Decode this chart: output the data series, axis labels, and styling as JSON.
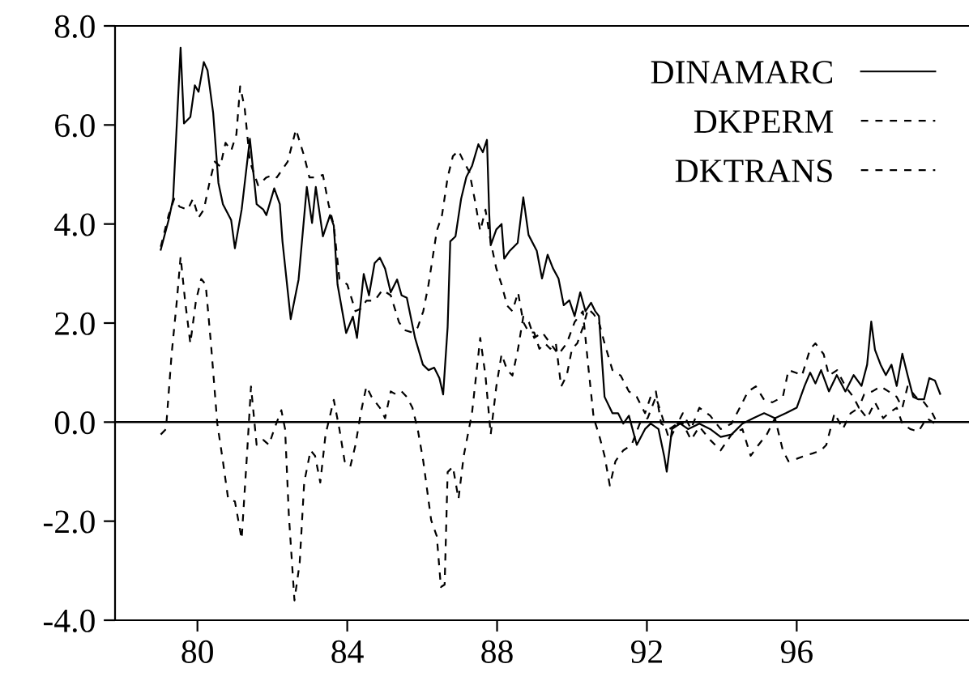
{
  "chart_data": {
    "type": "line",
    "xlim": [
      77.8,
      100.6
    ],
    "ylim": [
      -4.0,
      8.0
    ],
    "xticks": [
      80,
      84,
      88,
      92,
      96
    ],
    "yticks": [
      {
        "value": -4,
        "label": "-4.0"
      },
      {
        "value": -2,
        "label": "-2.0"
      },
      {
        "value": 0,
        "label": "0.0"
      },
      {
        "value": 2,
        "label": "2.0"
      },
      {
        "value": 4,
        "label": "4.0"
      },
      {
        "value": 6,
        "label": "6.0"
      },
      {
        "value": 8,
        "label": "8.0"
      }
    ],
    "grid": false,
    "legend": "top right",
    "marker": "none",
    "ref_lines": [
      {
        "axis": "y",
        "value": 0,
        "color": "#000000",
        "line_style": "solid"
      }
    ],
    "series": [
      {
        "name": "DINAMARC",
        "color": "#000000",
        "line_style": "solid",
        "x": [
          79.02,
          79.23,
          79.35,
          79.55,
          79.64,
          79.81,
          79.93,
          80.03,
          80.17,
          80.27,
          80.42,
          80.56,
          80.68,
          80.9,
          81.0,
          81.18,
          81.4,
          81.58,
          81.76,
          81.84,
          82.05,
          82.2,
          82.27,
          82.49,
          82.7,
          82.92,
          83.06,
          83.16,
          83.35,
          83.54,
          83.64,
          83.74,
          83.97,
          84.15,
          84.26,
          84.44,
          84.58,
          84.73,
          84.87,
          85.01,
          85.16,
          85.33,
          85.45,
          85.59,
          85.81,
          86.02,
          86.17,
          86.32,
          86.46,
          86.56,
          86.68,
          86.75,
          86.89,
          87.04,
          87.18,
          87.33,
          87.5,
          87.62,
          87.73,
          87.79,
          87.83,
          87.98,
          88.12,
          88.19,
          88.34,
          88.55,
          88.7,
          88.84,
          89.06,
          89.2,
          89.35,
          89.49,
          89.64,
          89.78,
          89.93,
          90.07,
          90.22,
          90.36,
          90.51,
          90.62,
          90.72,
          90.87,
          91.08,
          91.23,
          91.37,
          91.52,
          91.73,
          91.95,
          92.1,
          92.31,
          92.46,
          92.53,
          92.67,
          92.89,
          93.1,
          93.4,
          93.69,
          93.97,
          94.26,
          94.55,
          94.84,
          95.13,
          95.42,
          95.71,
          96.0,
          96.21,
          96.36,
          96.5,
          96.65,
          96.86,
          97.07,
          97.3,
          97.52,
          97.73,
          97.88,
          97.99,
          98.09,
          98.24,
          98.38,
          98.53,
          98.67,
          98.82,
          98.96,
          99.11,
          99.25,
          99.4,
          99.54,
          99.69,
          99.83
        ],
        "values": [
          3.48,
          4.08,
          4.51,
          7.56,
          6.03,
          6.16,
          6.8,
          6.67,
          7.27,
          7.1,
          6.24,
          4.83,
          4.4,
          4.08,
          3.51,
          4.29,
          5.72,
          4.4,
          4.29,
          4.18,
          4.72,
          4.4,
          3.65,
          2.08,
          2.88,
          4.75,
          4.02,
          4.75,
          3.75,
          4.18,
          3.97,
          2.78,
          1.8,
          2.13,
          1.7,
          2.99,
          2.56,
          3.21,
          3.32,
          3.1,
          2.62,
          2.88,
          2.56,
          2.51,
          1.7,
          1.16,
          1.05,
          1.1,
          0.89,
          0.56,
          1.92,
          3.65,
          3.75,
          4.51,
          4.95,
          5.17,
          5.61,
          5.45,
          5.7,
          4.21,
          3.57,
          3.89,
          4.0,
          3.3,
          3.46,
          3.62,
          4.54,
          3.78,
          3.46,
          2.9,
          3.38,
          3.11,
          2.9,
          2.36,
          2.46,
          2.14,
          2.62,
          2.24,
          2.41,
          2.24,
          2.14,
          0.51,
          0.18,
          0.18,
          -0.03,
          0.13,
          -0.46,
          -0.14,
          -0.03,
          -0.14,
          -0.68,
          -1.0,
          -0.14,
          -0.03,
          -0.14,
          -0.03,
          -0.14,
          -0.3,
          -0.25,
          -0.03,
          0.08,
          0.18,
          0.08,
          0.18,
          0.29,
          0.73,
          1.0,
          0.78,
          1.05,
          0.62,
          0.95,
          0.62,
          0.95,
          0.73,
          1.16,
          2.03,
          1.46,
          1.16,
          0.95,
          1.16,
          0.73,
          1.38,
          0.95,
          0.51,
          0.46,
          0.46,
          0.89,
          0.84,
          0.57
        ]
      },
      {
        "name": "DKPERM",
        "color": "#000000",
        "line_style": "dashed",
        "x": [
          79.02,
          79.09,
          79.23,
          79.38,
          79.52,
          79.74,
          79.88,
          80.03,
          80.17,
          80.32,
          80.46,
          80.61,
          80.75,
          80.9,
          81.04,
          81.14,
          81.26,
          81.4,
          81.62,
          81.84,
          82.01,
          82.12,
          82.41,
          82.63,
          82.85,
          82.99,
          83.14,
          83.35,
          83.5,
          83.64,
          83.79,
          84.0,
          84.22,
          84.36,
          84.51,
          84.73,
          84.94,
          85.16,
          85.38,
          85.52,
          85.74,
          85.88,
          86.03,
          86.17,
          86.39,
          86.53,
          86.68,
          86.82,
          86.97,
          87.11,
          87.26,
          87.4,
          87.55,
          87.69,
          87.83,
          87.98,
          88.12,
          88.27,
          88.41,
          88.56,
          88.7,
          88.85,
          88.99,
          89.13,
          89.28,
          89.42,
          89.57,
          89.71,
          89.86,
          90.0,
          90.14,
          90.29,
          90.43,
          90.58,
          90.72,
          90.87,
          91.08,
          91.3,
          91.52,
          91.73,
          91.95,
          92.1,
          92.24,
          92.38,
          92.6,
          92.82,
          92.96,
          93.18,
          93.4,
          93.69,
          93.97,
          94.26,
          94.48,
          94.7,
          94.91,
          95.13,
          95.35,
          95.63,
          95.78,
          96.0,
          96.14,
          96.36,
          96.5,
          96.72,
          96.86,
          97.08,
          97.3,
          97.51,
          97.66,
          97.8,
          98.02,
          98.24,
          98.45,
          98.67,
          98.82,
          98.96,
          99.18,
          99.4,
          99.62,
          99.76
        ],
        "values": [
          3.54,
          3.75,
          4.18,
          4.51,
          4.35,
          4.29,
          4.51,
          4.13,
          4.29,
          4.83,
          5.26,
          5.16,
          5.64,
          5.48,
          5.81,
          6.78,
          6.35,
          5.26,
          4.78,
          4.94,
          4.99,
          4.94,
          5.26,
          5.91,
          5.37,
          4.94,
          4.94,
          4.99,
          4.4,
          3.97,
          2.89,
          2.78,
          2.24,
          2.29,
          2.45,
          2.45,
          2.67,
          2.56,
          2.02,
          1.86,
          1.81,
          1.91,
          2.24,
          2.78,
          3.86,
          4.18,
          4.94,
          5.37,
          5.48,
          5.26,
          5.05,
          4.51,
          3.86,
          4.29,
          3.64,
          3.1,
          2.78,
          2.35,
          2.24,
          2.62,
          2.02,
          1.81,
          1.81,
          1.48,
          1.59,
          1.48,
          1.59,
          0.72,
          0.94,
          1.48,
          1.59,
          1.91,
          2.29,
          2.18,
          2.02,
          1.59,
          1.05,
          0.94,
          0.62,
          0.51,
          0.18,
          0.51,
          0.62,
          -0.03,
          -0.14,
          -0.03,
          0.18,
          -0.14,
          0.29,
          0.13,
          -0.14,
          -0.03,
          0.29,
          0.62,
          0.72,
          0.45,
          0.4,
          0.51,
          1.05,
          0.99,
          0.94,
          1.48,
          1.59,
          1.37,
          0.94,
          1.05,
          0.72,
          0.51,
          0.29,
          0.56,
          0.62,
          0.72,
          0.62,
          0.51,
          0.29,
          0.72,
          0.51,
          0.4,
          0.18,
          -0.03
        ]
      },
      {
        "name": "DKTRANS",
        "color": "#000000",
        "line_style": "dashed",
        "x": [
          79.02,
          79.16,
          79.31,
          79.45,
          79.55,
          79.67,
          79.81,
          79.96,
          80.1,
          80.22,
          80.36,
          80.53,
          80.68,
          80.82,
          81.0,
          81.18,
          81.33,
          81.43,
          81.58,
          81.76,
          81.91,
          82.05,
          82.24,
          82.34,
          82.44,
          82.59,
          82.73,
          82.85,
          83.02,
          83.14,
          83.28,
          83.42,
          83.64,
          83.79,
          83.93,
          84.08,
          84.22,
          84.36,
          84.51,
          84.65,
          84.87,
          85.01,
          85.16,
          85.3,
          85.45,
          85.59,
          85.74,
          85.88,
          86.03,
          86.24,
          86.39,
          86.5,
          86.6,
          86.68,
          86.82,
          86.97,
          87.11,
          87.33,
          87.55,
          87.69,
          87.83,
          87.98,
          88.12,
          88.27,
          88.41,
          88.56,
          88.7,
          88.85,
          88.99,
          89.21,
          89.42,
          89.64,
          89.86,
          90.07,
          90.29,
          90.43,
          90.58,
          90.72,
          90.87,
          91.01,
          91.16,
          91.37,
          91.59,
          91.81,
          92.02,
          92.24,
          92.38,
          92.6,
          92.82,
          92.96,
          93.18,
          93.4,
          93.69,
          93.97,
          94.26,
          94.55,
          94.77,
          94.98,
          95.2,
          95.42,
          95.63,
          95.78,
          96.0,
          96.21,
          96.43,
          96.65,
          96.79,
          97.01,
          97.23,
          97.44,
          97.66,
          97.88,
          98.09,
          98.31,
          98.45,
          98.67,
          98.82,
          99.03,
          99.25,
          99.47,
          99.69
        ],
        "values": [
          -0.25,
          -0.14,
          1.37,
          2.45,
          3.34,
          2.45,
          1.59,
          2.45,
          2.89,
          2.78,
          1.59,
          -0.03,
          -0.79,
          -1.55,
          -1.6,
          -2.36,
          -0.57,
          0.72,
          -0.46,
          -0.36,
          -0.46,
          -0.14,
          0.24,
          -0.14,
          -1.87,
          -3.6,
          -2.84,
          -1.22,
          -0.57,
          -0.68,
          -1.22,
          -0.25,
          0.45,
          -0.14,
          -0.79,
          -0.9,
          -0.46,
          0.18,
          0.72,
          0.51,
          0.29,
          0.08,
          0.62,
          0.56,
          0.62,
          0.51,
          0.29,
          -0.14,
          -0.79,
          -1.98,
          -2.3,
          -3.33,
          -3.28,
          -1.01,
          -0.9,
          -1.55,
          -0.68,
          0.18,
          1.7,
          0.94,
          -0.25,
          0.72,
          1.37,
          1.05,
          0.94,
          1.48,
          2.13,
          2.02,
          1.7,
          1.81,
          1.59,
          1.37,
          1.59,
          2.02,
          2.24,
          1.16,
          0.08,
          -0.25,
          -0.68,
          -1.28,
          -0.79,
          -0.57,
          -0.46,
          -0.03,
          0.08,
          0.51,
          0.18,
          -0.36,
          -0.03,
          -0.03,
          -0.36,
          -0.09,
          -0.36,
          -0.57,
          -0.25,
          -0.14,
          -0.68,
          -0.46,
          -0.25,
          0.08,
          -0.57,
          -0.79,
          -0.74,
          -0.68,
          -0.63,
          -0.57,
          -0.46,
          0.18,
          -0.14,
          0.18,
          0.29,
          0.08,
          0.4,
          0.08,
          0.18,
          0.29,
          -0.03,
          -0.14,
          -0.19,
          0.08,
          -0.03
        ]
      }
    ]
  }
}
